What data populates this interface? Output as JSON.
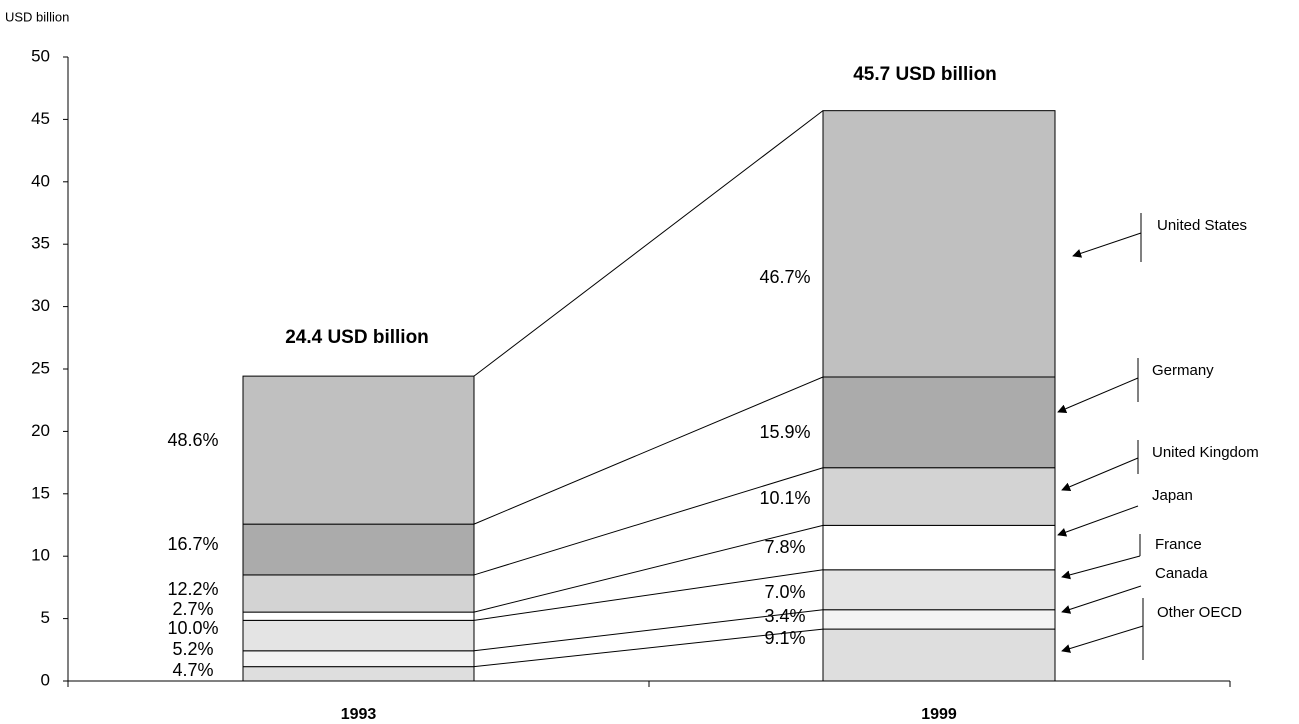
{
  "chart_data": {
    "type": "bar",
    "stacked": true,
    "y_label": "USD billion",
    "categories": [
      "1993",
      "1999"
    ],
    "total_labels": [
      "24.4 USD billion",
      "45.7 USD billion"
    ],
    "series": [
      {
        "name": "Other OECD",
        "color": "#dedede",
        "values": [
          1.15,
          4.16
        ],
        "value_labels": [
          "4.7%",
          "9.1%"
        ]
      },
      {
        "name": "Canada",
        "color": "#f3f3f3",
        "values": [
          1.27,
          1.55
        ],
        "value_labels": [
          "5.2%",
          "3.4%"
        ]
      },
      {
        "name": "France",
        "color": "#e4e4e4",
        "values": [
          2.44,
          3.2
        ],
        "value_labels": [
          "10.0%",
          "7.0%"
        ]
      },
      {
        "name": "Japan",
        "color": "#ffffff",
        "values": [
          0.66,
          3.56
        ],
        "value_labels": [
          "2.7%",
          "7.8%"
        ]
      },
      {
        "name": "United Kingdom",
        "color": "#d3d3d3",
        "values": [
          2.98,
          4.62
        ],
        "value_labels": [
          "12.2%",
          "10.1%"
        ]
      },
      {
        "name": "Germany",
        "color": "#ababab",
        "values": [
          4.07,
          7.27
        ],
        "value_labels": [
          "16.7%",
          "15.9%"
        ]
      },
      {
        "name": "United States",
        "color": "#c0c0c0",
        "values": [
          11.86,
          21.34
        ],
        "value_labels": [
          "48.6%",
          "46.7%"
        ]
      }
    ],
    "ylim": [
      0,
      50
    ],
    "yticks": [
      0,
      5,
      10,
      15,
      20,
      25,
      30,
      35,
      40,
      45,
      50
    ]
  }
}
